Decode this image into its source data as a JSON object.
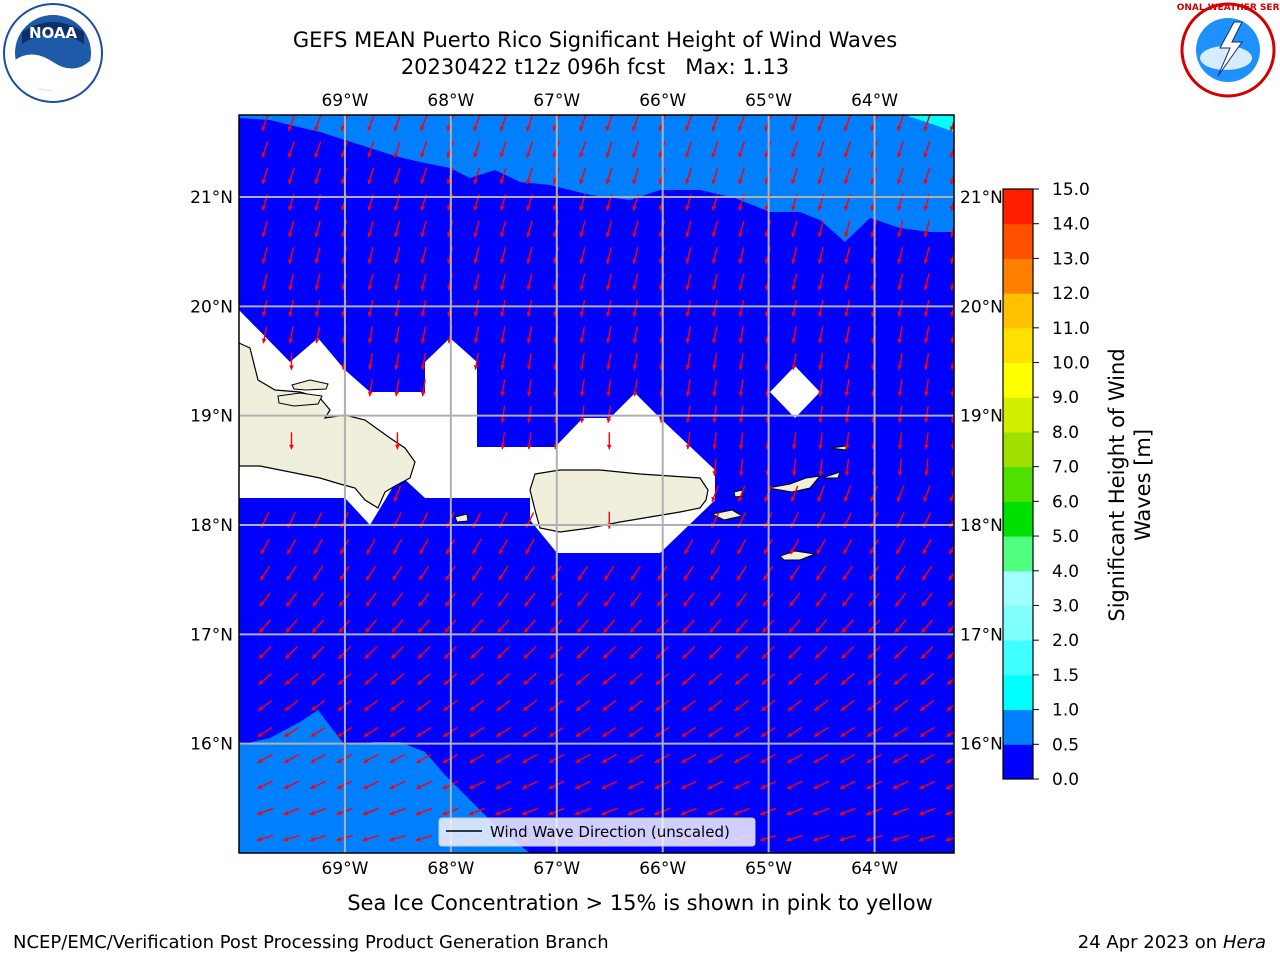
{
  "title_line1": "GEFS MEAN Puerto Rico Significant Height of Wind Waves",
  "title_line2": "20230422 t12z 096h fcst   Max: 1.13",
  "map": {
    "lon_ticks": [
      "69°W",
      "68°W",
      "67°W",
      "66°W",
      "65°W",
      "64°W"
    ],
    "lat_ticks": [
      "21°N",
      "20°N",
      "19°N",
      "18°N",
      "17°N",
      "16°N"
    ],
    "lon_range": [
      -70.0,
      -63.25
    ],
    "lat_range": [
      15.0,
      21.75
    ],
    "legend_label": "Wind Wave Direction (unscaled)",
    "fill_color_low": "#0000ff",
    "fill_color_mid": "#0080ff",
    "arrow_color": "#ff0000",
    "land_color": "#efefdc"
  },
  "colorbar": {
    "label": "Significant Height of Wind Waves [m]",
    "label_line1": "Significant Height of Wind",
    "label_line2": "Waves [m]",
    "ticks": [
      "0.0",
      "0.5",
      "1.0",
      "1.5",
      "2.0",
      "3.0",
      "4.0",
      "5.0",
      "6.0",
      "7.0",
      "8.0",
      "9.0",
      "10.0",
      "11.0",
      "12.0",
      "13.0",
      "14.0",
      "15.0"
    ],
    "colors": [
      "#0000ff",
      "#0080ff",
      "#00ffff",
      "#40ffff",
      "#80ffff",
      "#a0ffff",
      "#50ff80",
      "#00e000",
      "#50e000",
      "#a0e000",
      "#d0f000",
      "#ffff00",
      "#ffe000",
      "#ffc000",
      "#ff8000",
      "#ff5000",
      "#ff2000",
      "#ff0000"
    ]
  },
  "sea_ice_note": "Sea Ice Concentration > 15% is shown in pink to yellow",
  "footer_left": "NCEP/EMC/Verification Post Processing Product Generation Branch",
  "footer_right_date": "24 Apr 2023 on ",
  "footer_right_host": "Hera",
  "logos": {
    "noaa_text": "NOAA",
    "nws_text": "NATIONAL WEATHER SERVICE"
  }
}
